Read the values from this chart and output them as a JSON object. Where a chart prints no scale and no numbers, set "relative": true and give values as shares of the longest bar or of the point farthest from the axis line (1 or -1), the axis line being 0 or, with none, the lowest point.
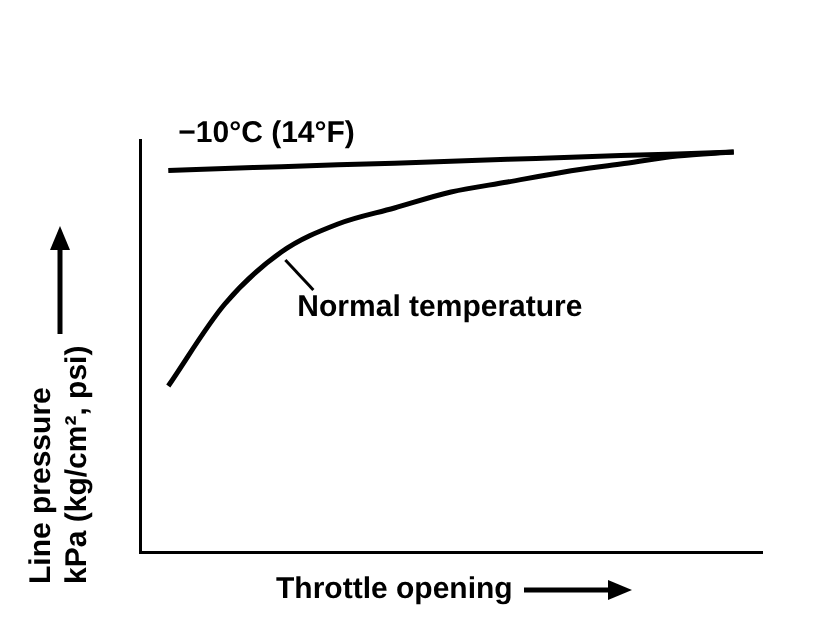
{
  "chart_data": {
    "type": "line",
    "relative": true,
    "xlabel": "Throttle opening",
    "ylabel": "Line pressure\nkPa (kg/cm², psi)",
    "categories": [
      null,
      null,
      null,
      null,
      null,
      null,
      null,
      null,
      null,
      null,
      null
    ],
    "series": [
      {
        "name": "−10°C (14°F)",
        "color": "#000000",
        "values": [
          0.954,
          0.959,
          0.963,
          0.968,
          0.972,
          0.977,
          0.982,
          0.986,
          0.991,
          0.995,
          1
        ]
      },
      {
        "name": "Normal temperature",
        "color": "#000000",
        "values": [
          0.415,
          0.62,
          0.75,
          0.82,
          0.86,
          0.9,
          0.925,
          0.95,
          0.97,
          0.99,
          1
        ]
      }
    ],
    "grid": false,
    "marker": "none",
    "line_style": "solid"
  }
}
